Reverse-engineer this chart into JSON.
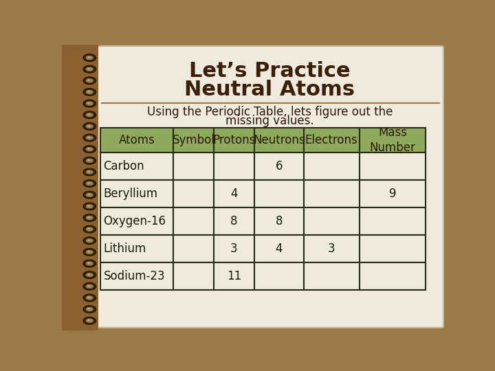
{
  "title_line1": "Let’s Practice",
  "title_line2": "Neutral Atoms",
  "subtitle_line1": "Using the Periodic Table, lets figure out the",
  "subtitle_line2": "missing values.",
  "bg_color": "#9b7a4a",
  "page_color": "#eeeade",
  "header_bg": "#8faa5c",
  "header_text_color": "#2b1a0a",
  "cell_bg": "#eeeade",
  "cell_border": "#2a2a1a",
  "title_color": "#3b1f08",
  "subtitle_color": "#2a1505",
  "headers": [
    "Atoms",
    "Symbol",
    "Protons",
    "Neutrons",
    "Electrons",
    "Mass\nNumber"
  ],
  "rows": [
    [
      "Carbon",
      "",
      "",
      "6",
      "",
      ""
    ],
    [
      "Beryllium",
      "",
      "4",
      "",
      "",
      "9"
    ],
    [
      "Oxygen-16",
      "",
      "8",
      "8",
      "",
      ""
    ],
    [
      "Lithium",
      "",
      "3",
      "4",
      "3",
      ""
    ],
    [
      "Sodium-23",
      "",
      "11",
      "",
      "",
      ""
    ]
  ],
  "row_align": [
    "left",
    "center",
    "center",
    "center",
    "center",
    "center"
  ],
  "font_family": "Comic Sans MS",
  "title_fontsize": 22,
  "subtitle_fontsize": 12,
  "table_fontsize": 12,
  "header_fontsize": 12,
  "separator_color": "#9b7a4a",
  "spiral_outer": "#5a4020",
  "spiral_inner": "#eeeade",
  "binding_color": "#8b6030"
}
